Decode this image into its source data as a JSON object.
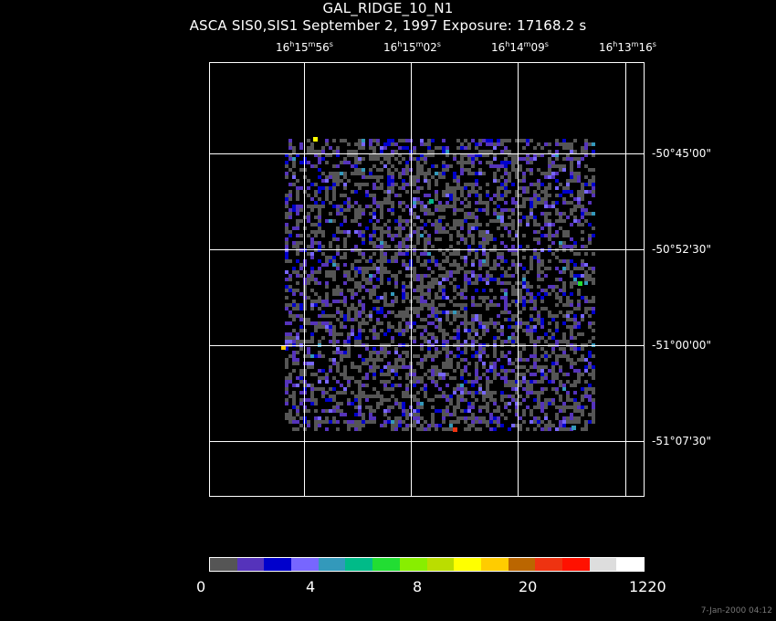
{
  "header": {
    "title": "GAL_RIDGE_10_N1",
    "subtitle": "ASCA SIS0,SIS1 September 2, 1997 Exposure: 17168.2 s"
  },
  "ra_labels": [
    {
      "h": "16",
      "m": "15",
      "s": "56"
    },
    {
      "h": "16",
      "m": "15",
      "s": "02"
    },
    {
      "h": "16",
      "m": "14",
      "s": "09"
    },
    {
      "h": "16",
      "m": "13",
      "s": "16"
    }
  ],
  "dec_labels": [
    "-50°45'00\"",
    "-50°52'30\"",
    "-51°00'00\"",
    "-51°07'30\""
  ],
  "colorbar": {
    "colors": [
      "#555555",
      "#5533bb",
      "#0000cc",
      "#7766ff",
      "#3399bb",
      "#00bb88",
      "#22dd33",
      "#88ee00",
      "#bbdd00",
      "#ffff00",
      "#ffcc00",
      "#bb6600",
      "#ee3311",
      "#ff1100",
      "#dddddd",
      "#ffffff"
    ],
    "labels": [
      "0",
      "4",
      "8",
      "20",
      "1220"
    ]
  },
  "timestamp": "7-Jan-2000 04:12"
}
